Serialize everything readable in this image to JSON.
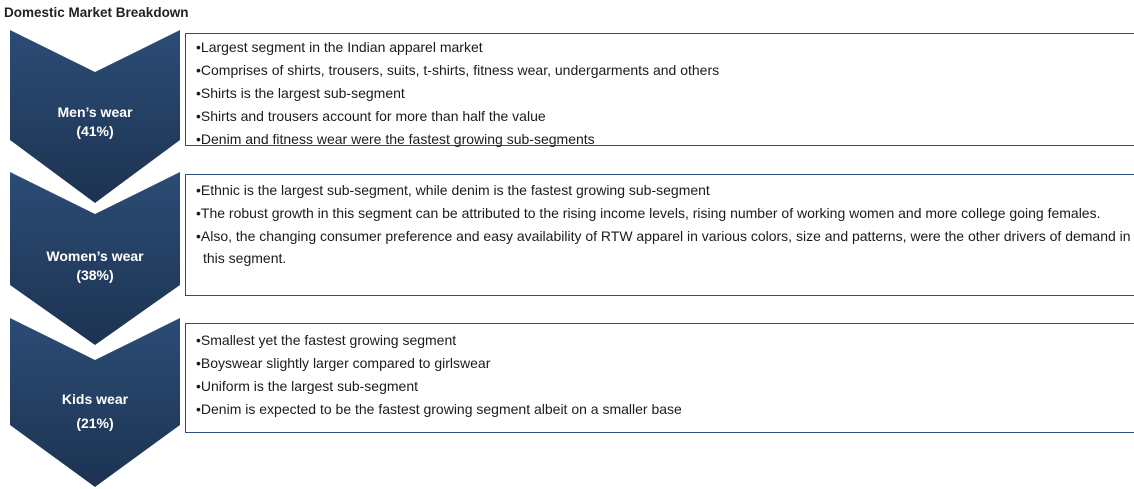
{
  "header": {
    "title": "Domestic Market Breakdown"
  },
  "segments": [
    {
      "label": "Men’s wear",
      "share": "(41%)",
      "points": [
        "Largest segment in the Indian apparel market",
        "Comprises of shirts, trousers, suits, t-shirts, fitness wear, undergarments and others",
        "Shirts is the largest sub-segment",
        "Shirts and trousers account for more than half the value",
        "Denim and fitness wear were the fastest growing sub-segments"
      ]
    },
    {
      "label": "Women’s wear",
      "share": "(38%)",
      "points": [
        "Ethnic is the largest sub-segment, while denim is the fastest growing sub-segment",
        "The robust growth in this segment can be attributed to the rising income levels, rising number of working women and more college going females.",
        "Also, the changing consumer preference and easy availability of RTW apparel in various colors, size and patterns, were the other drivers of demand in this segment."
      ]
    },
    {
      "label": "Kids wear",
      "share": "(21%)",
      "points": [
        "Smallest yet the fastest growing segment",
        "Boyswear slightly larger compared to girlswear",
        "Uniform is the largest sub-segment",
        "Denim is expected to be the fastest growing segment albeit on a smaller base"
      ]
    }
  ]
}
